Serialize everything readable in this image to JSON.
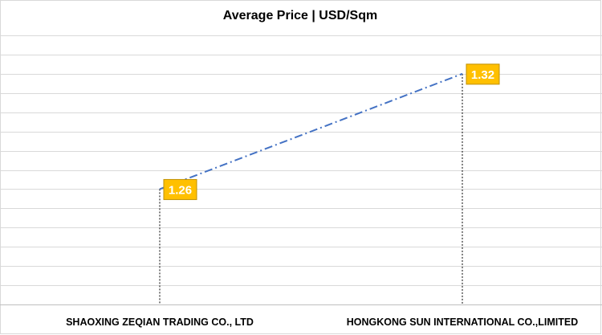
{
  "chart_data": {
    "type": "line",
    "title": "Average Price | USD/Sqm",
    "categories": [
      "SHAOXING ZEQIAN TRADING CO., LTD",
      "HONGKONG SUN INTERNATIONAL CO.,LIMITED"
    ],
    "series": [
      {
        "values": [
          1.26,
          1.32
        ]
      }
    ],
    "data_labels": [
      "1.26",
      "1.32"
    ],
    "ylim": [
      1.2,
      1.34
    ],
    "grid": true,
    "line_style": "dash-dot",
    "colors": {
      "line": "#4472c4",
      "label_fill": "#ffc000",
      "label_border": "#bf9000",
      "label_text": "#ffffff",
      "grid": "#d9d9d9",
      "drop_line": "#000000"
    }
  }
}
